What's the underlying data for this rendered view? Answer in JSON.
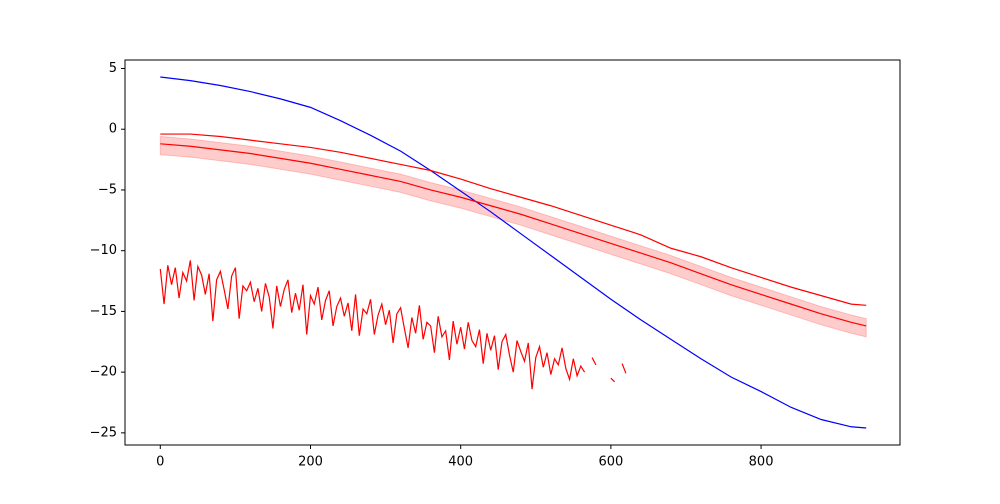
{
  "chart_data": {
    "type": "line",
    "xlim": [
      -47,
      985
    ],
    "ylim": [
      -26,
      5.7
    ],
    "xticks": [
      0,
      200,
      400,
      600,
      800
    ],
    "yticks": [
      5,
      0,
      {
        "value": -5,
        "label": "−5"
      },
      {
        "value": -10,
        "label": "−10"
      },
      {
        "value": -15,
        "label": "−15"
      },
      {
        "value": -20,
        "label": "−20"
      },
      {
        "value": -25,
        "label": "−25"
      }
    ],
    "bands": [
      {
        "color": "#ff0000",
        "opacity": 0.2,
        "x": [
          0,
          40,
          80,
          120,
          160,
          200,
          240,
          280,
          320,
          360,
          400,
          440,
          480,
          520,
          560,
          600,
          640,
          680,
          720,
          760,
          800,
          840,
          880,
          920,
          940
        ],
        "upper": [
          -0.6,
          -0.8,
          -1.1,
          -1.4,
          -1.8,
          -2.2,
          -2.7,
          -3.2,
          -3.7,
          -4.4,
          -5.0,
          -5.7,
          -6.4,
          -7.2,
          -8.0,
          -8.8,
          -9.6,
          -10.4,
          -11.3,
          -12.2,
          -13.0,
          -13.8,
          -14.6,
          -15.3,
          -15.6
        ],
        "lower": [
          -2.1,
          -2.3,
          -2.6,
          -2.9,
          -3.3,
          -3.7,
          -4.2,
          -4.7,
          -5.2,
          -5.9,
          -6.5,
          -7.2,
          -7.9,
          -8.7,
          -9.5,
          -10.3,
          -11.1,
          -11.9,
          -12.8,
          -13.7,
          -14.5,
          -15.3,
          -16.1,
          -16.8,
          -17.1
        ]
      }
    ],
    "series": [
      {
        "color": "#0000ff",
        "x": [
          0,
          40,
          80,
          120,
          160,
          200,
          240,
          280,
          320,
          360,
          400,
          440,
          480,
          520,
          560,
          600,
          640,
          680,
          720,
          760,
          800,
          840,
          880,
          920,
          940
        ],
        "values": [
          4.3,
          4.0,
          3.6,
          3.1,
          2.5,
          1.8,
          0.7,
          -0.5,
          -1.8,
          -3.4,
          -5.1,
          -6.8,
          -8.6,
          -10.4,
          -12.2,
          -14.0,
          -15.7,
          -17.3,
          -18.9,
          -20.4,
          -21.6,
          -22.9,
          -23.9,
          -24.5,
          -24.6
        ]
      },
      {
        "color": "#ff0000",
        "x": [
          0,
          40,
          80,
          120,
          160,
          200,
          240,
          280,
          320,
          360,
          400,
          440,
          480,
          520,
          560,
          600,
          640,
          680,
          720,
          760,
          800,
          840,
          880,
          920,
          940
        ],
        "values": [
          -1.2,
          -1.4,
          -1.7,
          -2.0,
          -2.4,
          -2.8,
          -3.3,
          -3.8,
          -4.3,
          -5.0,
          -5.6,
          -6.3,
          -7.0,
          -7.8,
          -8.6,
          -9.4,
          -10.2,
          -11.0,
          -11.9,
          -12.8,
          -13.6,
          -14.4,
          -15.2,
          -15.9,
          -16.2
        ]
      },
      {
        "color": "#ff0000",
        "x": [
          0,
          40,
          80,
          120,
          160,
          200,
          240,
          280,
          320,
          360,
          400,
          440,
          480,
          520,
          560,
          600,
          640,
          680,
          720,
          760,
          800,
          840,
          880,
          920,
          940
        ],
        "values": [
          -0.4,
          -0.4,
          -0.6,
          -0.9,
          -1.2,
          -1.5,
          -1.9,
          -2.4,
          -2.9,
          -3.4,
          -4.1,
          -4.9,
          -5.6,
          -6.3,
          -7.1,
          -7.9,
          -8.7,
          -9.8,
          -10.5,
          -11.4,
          -12.2,
          -13.0,
          -13.7,
          -14.4,
          -14.5
        ]
      },
      {
        "color": "#ff0000",
        "x": [
          0,
          5,
          10,
          15,
          20,
          25,
          30,
          35,
          40,
          45,
          50,
          55,
          60,
          65,
          70,
          75,
          80,
          85,
          90,
          95,
          100,
          105,
          110,
          115,
          120,
          125,
          130,
          135,
          140,
          145,
          150,
          155,
          160,
          165,
          170,
          175,
          180,
          185,
          190,
          195,
          200,
          205,
          210,
          215,
          220,
          225,
          230,
          235,
          240,
          245,
          250,
          255,
          260,
          265,
          270,
          275,
          280,
          285,
          290,
          295,
          300,
          305,
          310,
          315,
          320,
          325,
          330,
          335,
          340,
          345,
          350,
          355,
          360,
          365,
          370,
          375,
          380,
          385,
          390,
          395,
          400,
          405,
          410,
          415,
          420,
          425,
          430,
          435,
          440,
          445,
          450,
          455,
          460,
          465,
          470,
          475,
          480,
          485,
          490,
          495,
          500,
          505,
          510,
          515,
          520,
          525,
          530,
          535,
          540,
          545,
          550,
          555,
          560,
          565,
          570,
          575,
          580,
          585,
          590,
          595,
          600,
          605,
          610,
          615,
          620
        ],
        "values": [
          -11.5,
          -14.4,
          -11.2,
          -12.8,
          -11.4,
          -13.9,
          -11.8,
          -12.5,
          -10.8,
          -14.1,
          -11.3,
          -12.0,
          -13.6,
          -11.9,
          -15.8,
          -12.4,
          -11.7,
          -13.2,
          -14.8,
          -12.1,
          -11.4,
          -15.6,
          -12.9,
          -13.3,
          -12.6,
          -14.2,
          -13.1,
          -15.0,
          -12.7,
          -13.8,
          -16.4,
          -12.9,
          -14.6,
          -13.2,
          -12.4,
          -15.1,
          -13.5,
          -14.9,
          -12.8,
          -16.9,
          -13.7,
          -14.4,
          -13.0,
          -15.7,
          -14.1,
          -13.3,
          -16.2,
          -14.6,
          -13.9,
          -15.4,
          -14.3,
          -16.6,
          -13.6,
          -17.0,
          -14.8,
          -15.2,
          -14.0,
          -16.9,
          -15.3,
          -14.4,
          -16.1,
          -14.9,
          -17.6,
          -15.2,
          -14.7,
          -16.4,
          -18.0,
          -15.5,
          -16.8,
          -14.5,
          -17.3,
          -15.9,
          -16.2,
          -18.4,
          -15.4,
          -17.1,
          -16.6,
          -19.0,
          -15.8,
          -17.7,
          -16.3,
          -18.1,
          -15.9,
          -17.4,
          -17.9,
          -16.5,
          -19.3,
          -16.8,
          -18.2,
          -17.0,
          -19.8,
          -17.5,
          -16.9,
          -18.6,
          -20.0,
          -17.4,
          -18.3,
          -19.1,
          -17.6,
          -21.4,
          -18.8,
          -17.9,
          -19.6,
          -18.4,
          -20.2,
          -18.9,
          -19.4,
          -18.0,
          -19.7,
          -20.6,
          -18.9,
          -20.3,
          -19.5,
          -20.0,
          null,
          -18.8,
          -19.4,
          null,
          null,
          null,
          -20.5,
          -20.8,
          null,
          -19.3,
          -20.1
        ]
      }
    ]
  }
}
